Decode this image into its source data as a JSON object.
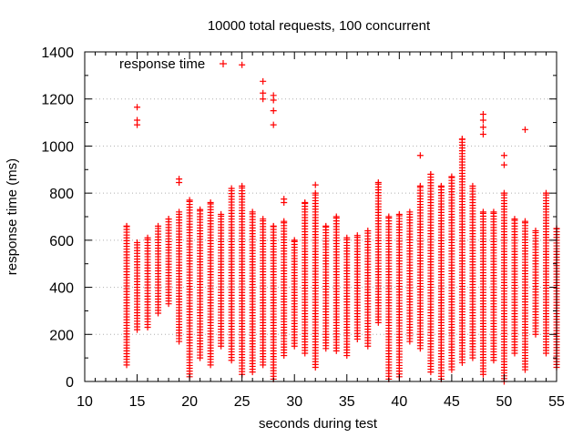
{
  "chart_data": {
    "type": "scatter",
    "title": "10000 total requests, 100 concurrent",
    "xlabel": "seconds during test",
    "ylabel": "response time (ms)",
    "xlim": [
      10,
      55
    ],
    "ylim": [
      0,
      1400
    ],
    "x_ticks": [
      10,
      15,
      20,
      25,
      30,
      35,
      40,
      45,
      50,
      55
    ],
    "y_ticks": [
      0,
      200,
      400,
      600,
      800,
      1000,
      1200,
      1400
    ],
    "grid": true,
    "legend_position": "top-left",
    "marker": "+",
    "series": [
      {
        "name": "response time",
        "color": "#ff0000",
        "columns": [
          {
            "x": 14,
            "min": 70,
            "max": 660,
            "outliers": []
          },
          {
            "x": 15,
            "min": 220,
            "max": 590,
            "outliers": [
              1090,
              1110,
              1165
            ]
          },
          {
            "x": 16,
            "min": 230,
            "max": 610,
            "outliers": []
          },
          {
            "x": 17,
            "min": 290,
            "max": 660,
            "outliers": []
          },
          {
            "x": 18,
            "min": 330,
            "max": 690,
            "outliers": []
          },
          {
            "x": 19,
            "min": 170,
            "max": 720,
            "outliers": [
              845,
              860
            ]
          },
          {
            "x": 20,
            "min": 20,
            "max": 770,
            "outliers": []
          },
          {
            "x": 21,
            "min": 100,
            "max": 730,
            "outliers": []
          },
          {
            "x": 22,
            "min": 70,
            "max": 760,
            "outliers": []
          },
          {
            "x": 23,
            "min": 150,
            "max": 710,
            "outliers": []
          },
          {
            "x": 24,
            "min": 90,
            "max": 820,
            "outliers": []
          },
          {
            "x": 25,
            "min": 30,
            "max": 830,
            "outliers": [
              1345
            ]
          },
          {
            "x": 26,
            "min": 40,
            "max": 720,
            "outliers": []
          },
          {
            "x": 27,
            "min": 70,
            "max": 690,
            "outliers": [
              1200,
              1225,
              1275
            ]
          },
          {
            "x": 28,
            "min": 10,
            "max": 660,
            "outliers": [
              1090,
              1150,
              1195,
              1215
            ]
          },
          {
            "x": 29,
            "min": 110,
            "max": 680,
            "outliers": [
              760,
              775
            ]
          },
          {
            "x": 30,
            "min": 150,
            "max": 600,
            "outliers": []
          },
          {
            "x": 31,
            "min": 120,
            "max": 760,
            "outliers": []
          },
          {
            "x": 32,
            "min": 60,
            "max": 800,
            "outliers": [
              835
            ]
          },
          {
            "x": 33,
            "min": 140,
            "max": 660,
            "outliers": []
          },
          {
            "x": 34,
            "min": 130,
            "max": 700,
            "outliers": []
          },
          {
            "x": 35,
            "min": 110,
            "max": 610,
            "outliers": []
          },
          {
            "x": 36,
            "min": 180,
            "max": 620,
            "outliers": []
          },
          {
            "x": 37,
            "min": 150,
            "max": 640,
            "outliers": []
          },
          {
            "x": 38,
            "min": 250,
            "max": 845,
            "outliers": []
          },
          {
            "x": 39,
            "min": 10,
            "max": 700,
            "outliers": []
          },
          {
            "x": 40,
            "min": 20,
            "max": 710,
            "outliers": []
          },
          {
            "x": 41,
            "min": 170,
            "max": 720,
            "outliers": []
          },
          {
            "x": 42,
            "min": 140,
            "max": 830,
            "outliers": [
              960
            ]
          },
          {
            "x": 43,
            "min": 40,
            "max": 880,
            "outliers": []
          },
          {
            "x": 44,
            "min": 10,
            "max": 830,
            "outliers": []
          },
          {
            "x": 45,
            "min": 50,
            "max": 870,
            "outliers": []
          },
          {
            "x": 46,
            "min": 80,
            "max": 1030,
            "outliers": []
          },
          {
            "x": 47,
            "min": 100,
            "max": 830,
            "outliers": []
          },
          {
            "x": 48,
            "min": 30,
            "max": 720,
            "outliers": [
              1050,
              1080,
              1110,
              1135
            ]
          },
          {
            "x": 49,
            "min": 90,
            "max": 720,
            "outliers": []
          },
          {
            "x": 50,
            "min": 0,
            "max": 800,
            "outliers": [
              920,
              960
            ]
          },
          {
            "x": 51,
            "min": 120,
            "max": 690,
            "outliers": []
          },
          {
            "x": 52,
            "min": 50,
            "max": 680,
            "outliers": [
              1070
            ]
          },
          {
            "x": 53,
            "min": 200,
            "max": 640,
            "outliers": []
          },
          {
            "x": 54,
            "min": 120,
            "max": 800,
            "outliers": []
          },
          {
            "x": 55,
            "min": 60,
            "max": 650,
            "outliers": []
          }
        ]
      }
    ]
  }
}
